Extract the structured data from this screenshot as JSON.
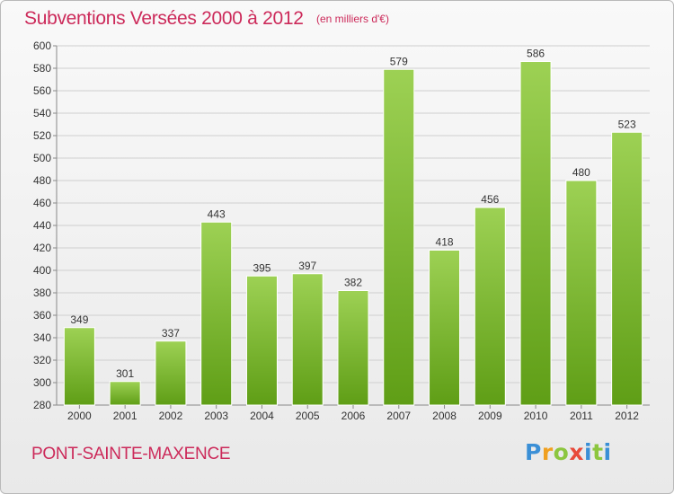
{
  "header": {
    "title": "Subventions Versées 2000 à 2012",
    "subtitle": "(en milliers d'€)"
  },
  "footer": {
    "commune": "PONT-SAINTE-MAXENCE",
    "logo_letters": [
      "P",
      "r",
      "o",
      "x",
      "i",
      "t",
      "i"
    ],
    "logo_colors": [
      "#3a8fd6",
      "#f0a020",
      "#8cc63f",
      "#e84a3a",
      "#3a8fd6",
      "#8cc63f",
      "#3a8fd6"
    ]
  },
  "colors": {
    "bar_top": "#9dd154",
    "bar_bottom": "#5f9e16",
    "accent": "#cc2a5a"
  },
  "chart_data": {
    "type": "bar",
    "categories": [
      "2000",
      "2001",
      "2002",
      "2003",
      "2004",
      "2005",
      "2006",
      "2007",
      "2008",
      "2009",
      "2010",
      "2011",
      "2012"
    ],
    "values": [
      349,
      301,
      337,
      443,
      395,
      397,
      382,
      579,
      418,
      456,
      586,
      480,
      523
    ],
    "ylim": [
      280,
      600
    ],
    "yticks": [
      280,
      300,
      320,
      340,
      360,
      380,
      400,
      420,
      440,
      460,
      480,
      500,
      520,
      540,
      560,
      580,
      600
    ],
    "grid": true,
    "data_labels": true
  }
}
